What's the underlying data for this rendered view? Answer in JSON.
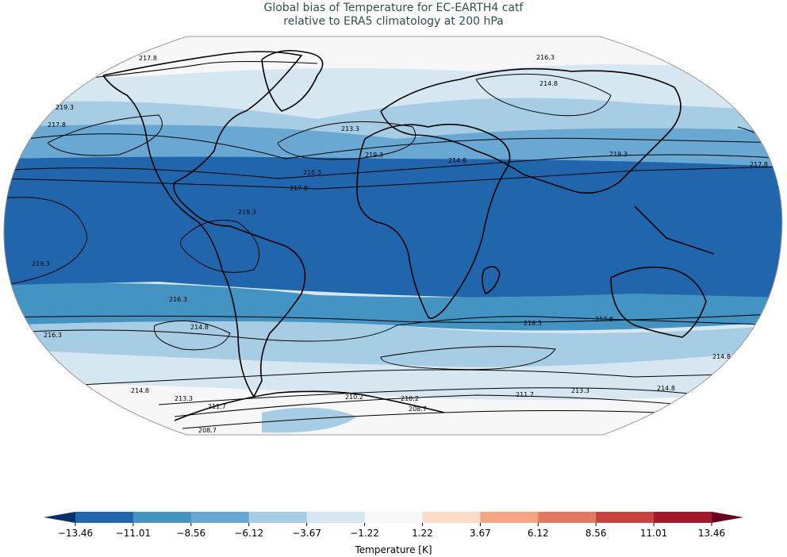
{
  "title": {
    "line1": "Global bias of Temperature for EC-EARTH4 catf",
    "line2": "relative to ERA5 climatology at 200 hPa"
  },
  "colorbar": {
    "label": "Temperature [K]",
    "ticks": [
      "−13.46",
      "−11.01",
      "−8.56",
      "−6.12",
      "−3.67",
      "−1.22",
      "1.22",
      "3.67",
      "6.12",
      "8.56",
      "11.01",
      "13.46"
    ],
    "colors": [
      "#08306b",
      "#2166ac",
      "#4393c3",
      "#6aa8d4",
      "#a6cde4",
      "#d6e7f1",
      "#f7f7f7",
      "#fcdcc9",
      "#f4a582",
      "#e07a5f",
      "#c74240",
      "#a3182a",
      "#67001f"
    ]
  },
  "map": {
    "projection": "robinson",
    "fill_colors": {
      "polar_light": "#f7f7f7",
      "light_blue": "#d6e7f1",
      "mid_light_blue": "#a6cde4",
      "mid_blue": "#6aa8d4",
      "blue": "#4393c3",
      "dark_blue": "#2166ac"
    },
    "contour_labels": [
      "217.8",
      "219.3",
      "216.3",
      "214.8",
      "213.3",
      "217.8",
      "219.3",
      "216.3",
      "217.8",
      "219.3",
      "219.3",
      "217.8",
      "216.3",
      "214.8",
      "216.3",
      "217.8",
      "214.8",
      "216.3",
      "214.8",
      "213.3",
      "211.7",
      "210.2",
      "210.2",
      "211.7",
      "213.3",
      "208.7",
      "214.8",
      "208.7",
      "214.8",
      "219.3"
    ]
  }
}
